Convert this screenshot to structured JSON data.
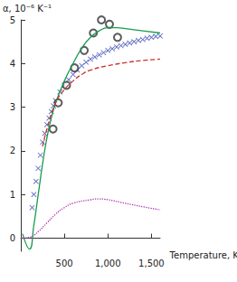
{
  "chart_data": {
    "type": "line",
    "y_label": "α, 10⁻⁶ K⁻¹",
    "x_label": "Temperature, K",
    "xlim": [
      0,
      1600
    ],
    "xticks": [
      500,
      1000,
      1500
    ],
    "ylim": [
      -0.3,
      5
    ],
    "yticks": [
      0,
      1,
      2,
      3,
      4,
      5
    ],
    "grid": false,
    "series": [
      {
        "type": "line",
        "line_style": "solid",
        "color": "#1a9a50",
        "x": [
          20,
          100,
          150,
          200,
          250,
          300,
          350,
          400,
          500,
          600,
          700,
          800,
          900,
          1000,
          1100,
          1200,
          1400,
          1600
        ],
        "values": [
          0.1,
          -0.25,
          0.3,
          1.0,
          1.7,
          2.3,
          2.75,
          3.1,
          3.6,
          4.0,
          4.35,
          4.6,
          4.75,
          4.82,
          4.82,
          4.8,
          4.75,
          4.7
        ]
      },
      {
        "type": "scatter",
        "marker": "cross",
        "color": "#3040b0",
        "x": [
          130,
          150,
          175,
          200,
          225,
          250,
          275,
          300,
          325,
          350,
          375,
          400,
          450,
          500,
          550,
          600,
          650,
          700,
          750,
          800,
          850,
          900,
          950,
          1000,
          1050,
          1100,
          1150,
          1200,
          1250,
          1300,
          1350,
          1400,
          1450,
          1500,
          1550,
          1600
        ],
        "values": [
          0.7,
          1.0,
          1.3,
          1.6,
          1.9,
          2.2,
          2.4,
          2.6,
          2.75,
          2.9,
          3.03,
          3.15,
          3.35,
          3.5,
          3.63,
          3.75,
          3.85,
          3.95,
          4.03,
          4.1,
          4.15,
          4.2,
          4.25,
          4.3,
          4.34,
          4.38,
          4.41,
          4.44,
          4.47,
          4.5,
          4.53,
          4.55,
          4.58,
          4.6,
          4.62,
          4.63
        ]
      },
      {
        "type": "line",
        "line_style": "dashed",
        "color": "#d03030",
        "x": [
          250,
          300,
          400,
          500,
          600,
          700,
          800,
          1000,
          1200,
          1400,
          1600
        ],
        "values": [
          2.1,
          2.5,
          3.1,
          3.4,
          3.6,
          3.75,
          3.85,
          3.95,
          4.02,
          4.07,
          4.1
        ]
      },
      {
        "type": "line",
        "line_style": "dotted",
        "color": "#b030b0",
        "x": [
          0,
          100,
          200,
          300,
          400,
          500,
          600,
          800,
          900,
          1000,
          1200,
          1400,
          1600
        ],
        "values": [
          0,
          0.02,
          0.15,
          0.35,
          0.55,
          0.7,
          0.8,
          0.88,
          0.9,
          0.88,
          0.8,
          0.72,
          0.65
        ]
      },
      {
        "type": "scatter",
        "marker": "circle",
        "color": "#333333",
        "x": [
          370,
          430,
          525,
          617,
          728,
          833,
          926,
          1018,
          1111
        ],
        "values": [
          2.5,
          3.1,
          3.5,
          3.9,
          4.3,
          4.7,
          5.0,
          4.9,
          4.6
        ]
      }
    ]
  }
}
